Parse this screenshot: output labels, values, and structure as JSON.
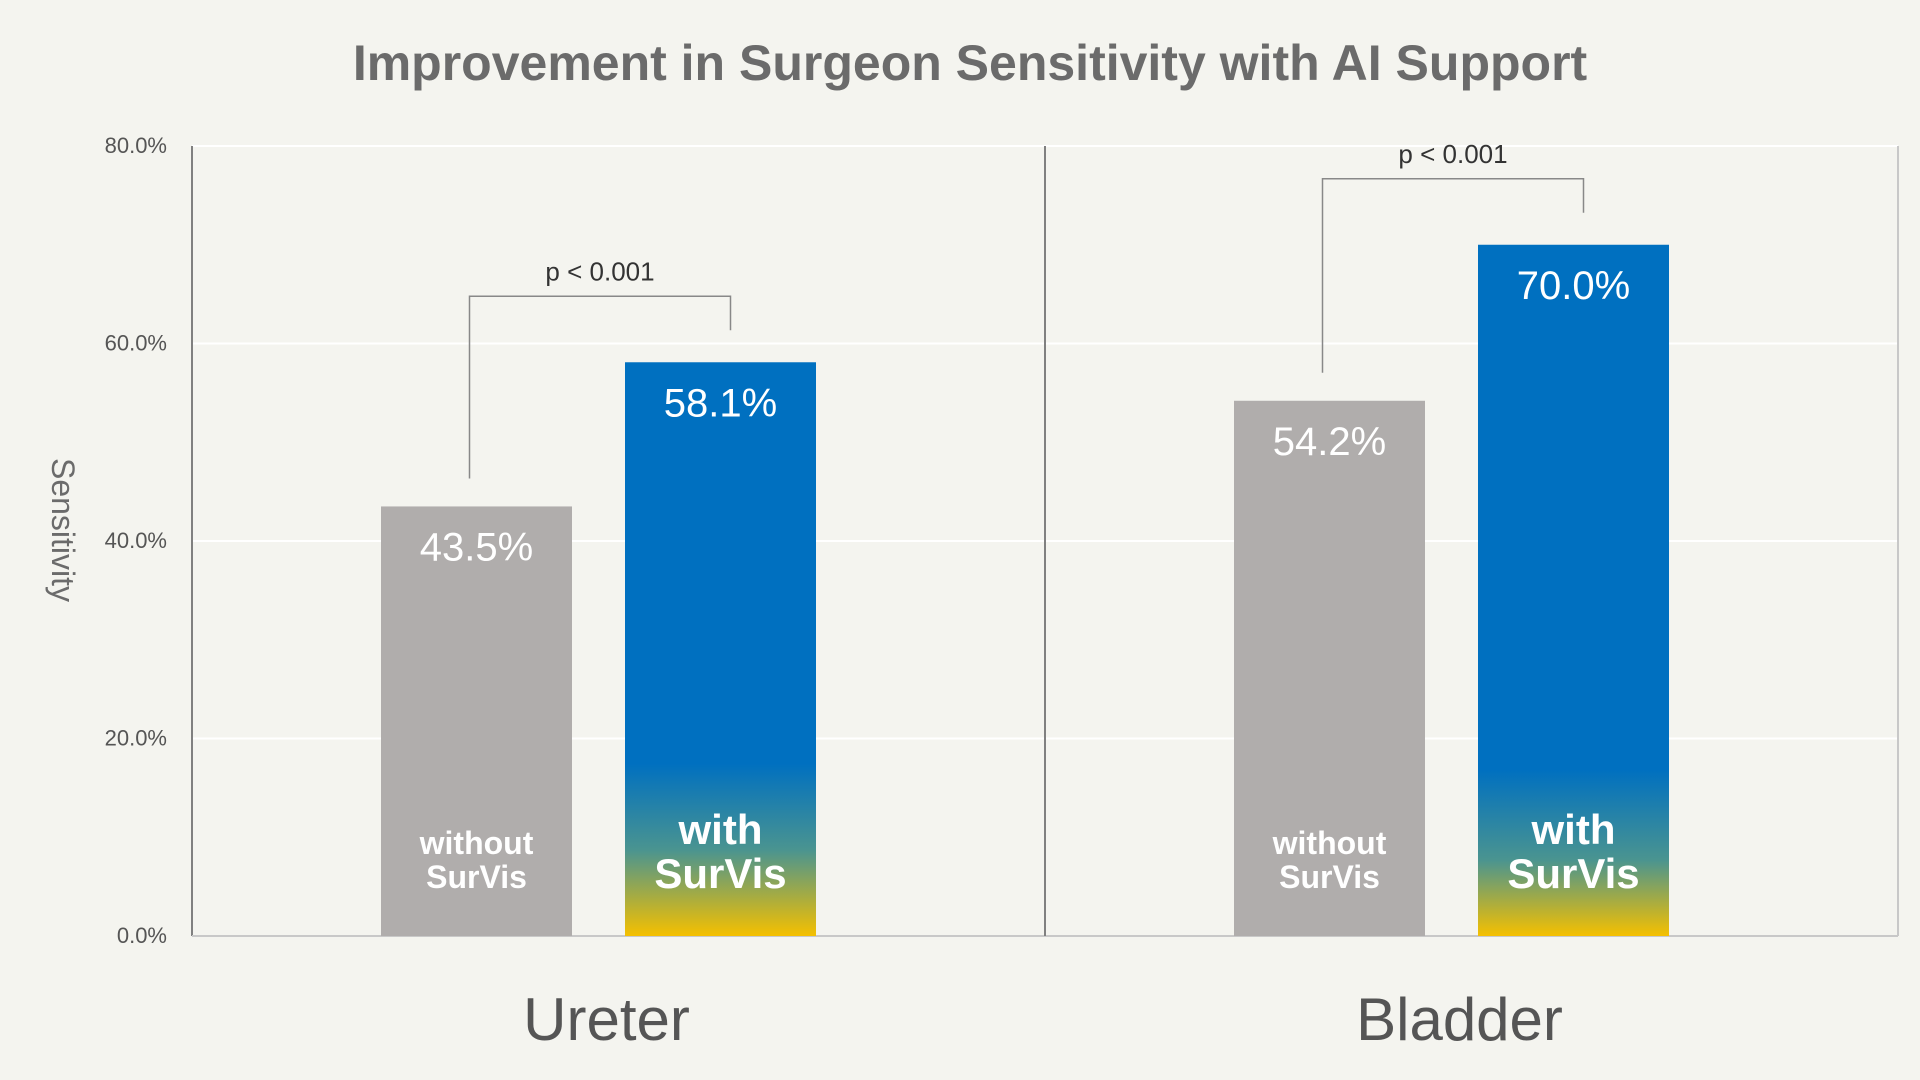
{
  "chart_data": {
    "type": "bar",
    "title": "Improvement in Surgeon Sensitivity with AI Support",
    "xlabel": "",
    "ylabel": "Sensitivity",
    "ylim": [
      0,
      80
    ],
    "yticks": [
      0,
      20,
      40,
      60,
      80
    ],
    "ytick_labels": [
      "0.0%",
      "20.0%",
      "40.0%",
      "60.0%",
      "80.0%"
    ],
    "grid": true,
    "categories": [
      "Ureter",
      "Bladder"
    ],
    "series": [
      {
        "name": "without SurVis",
        "label_lines": [
          "without",
          "SurVis"
        ],
        "values": [
          43.5,
          54.2
        ],
        "value_labels": [
          "43.5%",
          "54.2%"
        ],
        "color": "#b0adac"
      },
      {
        "name": "with SurVis",
        "label_lines": [
          "with",
          "SurVis"
        ],
        "values": [
          58.1,
          70.0
        ],
        "value_labels": [
          "58.1%",
          "70.0%"
        ],
        "color": "#0070c0",
        "gradient_bottom_color": "#f5c000"
      }
    ],
    "annotations": [
      "p < 0.001",
      "p < 0.001"
    ]
  },
  "colors": {
    "background": "#f4f4ef",
    "title": "#6b6b6b",
    "axis": "#808080",
    "grid": "#ffffff",
    "text": "#555555"
  }
}
